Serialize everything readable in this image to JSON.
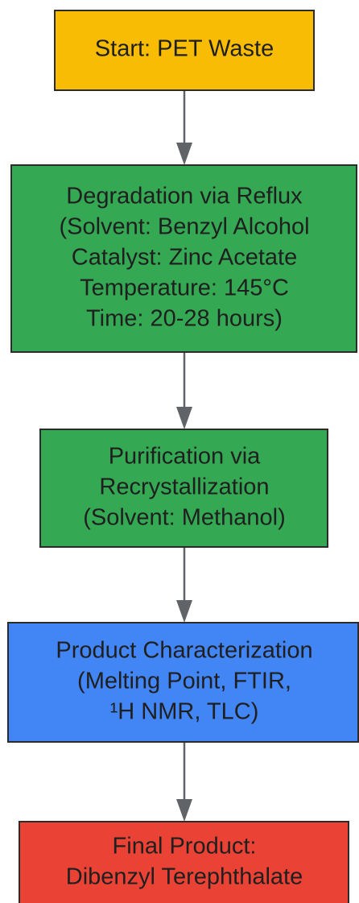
{
  "nodes": [
    {
      "lines": [
        "Start: PET Waste"
      ]
    },
    {
      "lines": [
        "Degradation via Reflux",
        "(Solvent: Benzyl Alcohol",
        "Catalyst: Zinc Acetate",
        "Temperature: 145°C",
        "Time: 20-28 hours)"
      ]
    },
    {
      "lines": [
        "Purification via",
        "Recrystallization",
        "(Solvent: Methanol)"
      ]
    },
    {
      "lines": [
        "Product Characterization",
        "(Melting Point, FTIR,",
        "¹H NMR, TLC)"
      ]
    },
    {
      "lines": [
        "Final Product:",
        "Dibenzyl Terephthalate"
      ]
    }
  ]
}
